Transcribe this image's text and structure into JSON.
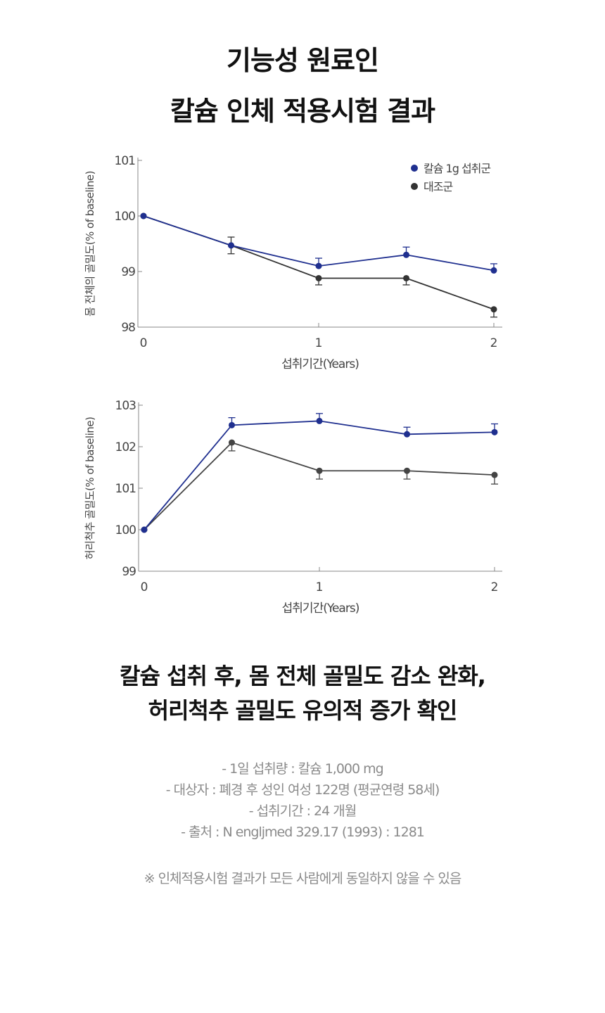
{
  "title": [
    "기능성 원료인",
    "칼슘 인체 적용시험 결과"
  ],
  "chart_data": [
    {
      "type": "line",
      "ylabel": "몸 전체의 골밀도(% of baseline)",
      "xlabel": "섭취기간(Years)",
      "xticks": [
        "0",
        "1",
        "2"
      ],
      "xlim": [
        0,
        2
      ],
      "yticks": [
        "98",
        "99",
        "100",
        "101"
      ],
      "ylim": [
        98,
        101
      ],
      "legend": "top-right",
      "series": [
        {
          "name": "칼슘 1g 섭취군",
          "color": "#1f2f8f",
          "x": [
            0,
            0.5,
            1,
            1.5,
            2
          ],
          "y": [
            100,
            99.47,
            99.1,
            99.3,
            99.02
          ],
          "err_hi": [
            null,
            null,
            99.24,
            99.44,
            99.14
          ],
          "err_lo": [
            null,
            null,
            null,
            null,
            null
          ]
        },
        {
          "name": "대조군",
          "color": "#333333",
          "x": [
            0,
            0.5,
            1,
            1.5,
            2
          ],
          "y": [
            100,
            99.47,
            98.88,
            98.88,
            98.32
          ],
          "err_hi": [
            null,
            99.62,
            null,
            null,
            null
          ],
          "err_lo": [
            null,
            99.32,
            98.76,
            98.76,
            98.18
          ]
        }
      ]
    },
    {
      "type": "line",
      "ylabel": "허리척추 골밀도(% of baseline)",
      "xlabel": "섭취기간(Years)",
      "xticks": [
        "0",
        "1",
        "2"
      ],
      "xlim": [
        0,
        2
      ],
      "yticks": [
        "99",
        "100",
        "101",
        "102",
        "103"
      ],
      "ylim": [
        99,
        103
      ],
      "series": [
        {
          "name": "칼슘 1g 섭취군",
          "color": "#1f2f8f",
          "x": [
            0,
            0.5,
            1,
            1.5,
            2
          ],
          "y": [
            100,
            102.52,
            102.62,
            102.3,
            102.35
          ],
          "err_hi": [
            null,
            102.7,
            102.8,
            102.47,
            102.55
          ],
          "err_lo": [
            null,
            null,
            null,
            null,
            null
          ]
        },
        {
          "name": "대조군",
          "color": "#444444",
          "x": [
            0,
            0.5,
            1,
            1.5,
            2
          ],
          "y": [
            100,
            102.1,
            101.42,
            101.42,
            101.32
          ],
          "err_hi": [
            null,
            null,
            null,
            null,
            null
          ],
          "err_lo": [
            null,
            101.9,
            101.22,
            101.22,
            101.1
          ]
        }
      ]
    }
  ],
  "summary": [
    "칼슘 섭취 후, 몸 전체 골밀도 감소 완화,",
    "허리척추 골밀도 유의적 증가 확인"
  ],
  "notes": [
    "- 1일 섭취량 : 칼슘 1,000 mg",
    "- 대상자 : 폐경 후 성인 여성 122명 (평균연령 58세)",
    "- 섭취기간 : 24 개월",
    "- 출처 : N engljmed 329.17 (1993) : 1281"
  ],
  "disclaimer": "※ 인체적용시험 결과가 모든 사람에게 동일하지 않을 수 있음"
}
